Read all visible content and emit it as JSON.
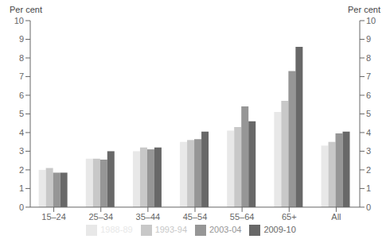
{
  "chart_data": {
    "type": "bar",
    "categories": [
      "15–24",
      "25–34",
      "35–44",
      "45–54",
      "55–64",
      "65+",
      "All"
    ],
    "series": [
      {
        "name": "1988-89",
        "color": "#e8e8e8",
        "values": [
          2.0,
          2.6,
          3.0,
          3.5,
          4.1,
          5.1,
          3.3
        ]
      },
      {
        "name": "1993-94",
        "color": "#c8c8c8",
        "values": [
          2.1,
          2.6,
          3.2,
          3.6,
          4.3,
          5.7,
          3.5
        ]
      },
      {
        "name": "2003-04",
        "color": "#969696",
        "values": [
          1.85,
          2.55,
          3.1,
          3.65,
          5.4,
          7.3,
          3.95
        ]
      },
      {
        "name": "2009-10",
        "color": "#686868",
        "values": [
          1.85,
          3.0,
          3.2,
          4.05,
          4.6,
          8.6,
          4.05
        ]
      }
    ],
    "ylabel": "Per cent",
    "y2label": "Per cent",
    "ylim": [
      0,
      10
    ],
    "yticks": [
      0,
      1,
      2,
      3,
      4,
      5,
      6,
      7,
      8,
      9,
      10
    ],
    "y2lim": [
      0,
      10
    ],
    "y2ticks": [
      0,
      1,
      2,
      3,
      4,
      5,
      6,
      7,
      8,
      9,
      10
    ],
    "grid": false,
    "legend": "bottom"
  }
}
